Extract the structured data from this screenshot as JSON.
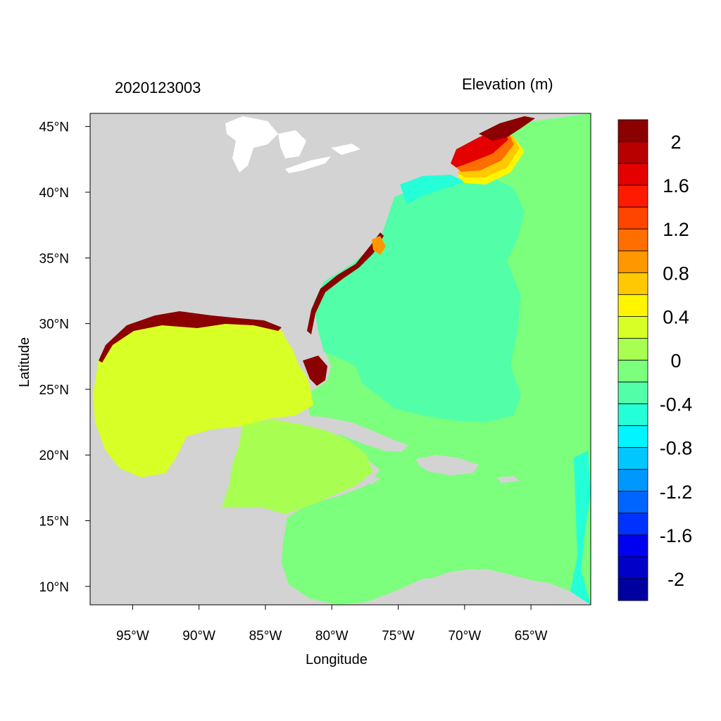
{
  "map": {
    "left_title": "2020123003",
    "right_title": "Elevation (m)",
    "xlabel": "Longitude",
    "ylabel": "Latitude",
    "lon_range": [
      -98.2,
      -60.5
    ],
    "lat_range": [
      8.6,
      46.0
    ],
    "lon_ticks": [
      {
        "value": -95,
        "label": "95°W"
      },
      {
        "value": -90,
        "label": "90°W"
      },
      {
        "value": -85,
        "label": "85°W"
      },
      {
        "value": -80,
        "label": "80°W"
      },
      {
        "value": -75,
        "label": "75°W"
      },
      {
        "value": -70,
        "label": "70°W"
      },
      {
        "value": -65,
        "label": "65°W"
      }
    ],
    "lat_ticks": [
      {
        "value": 45,
        "label": "45°N"
      },
      {
        "value": 40,
        "label": "40°N"
      },
      {
        "value": 35,
        "label": "35°N"
      },
      {
        "value": 30,
        "label": "30°N"
      },
      {
        "value": 25,
        "label": "25°N"
      },
      {
        "value": 20,
        "label": "20°N"
      },
      {
        "value": 15,
        "label": "15°N"
      },
      {
        "value": 10,
        "label": "10°N"
      }
    ],
    "land_color": "#d3d3d3",
    "regions": [
      {
        "name": "Gulf of Mexico",
        "level": "0.2 to 0.4",
        "color": "#d8ff26"
      },
      {
        "name": "Caribbean western basin",
        "level": "0 to 0.2",
        "color": "#a8ff52"
      },
      {
        "name": "Caribbean / open Atlantic",
        "level": "-0.2 to 0",
        "color": "#7cff7c"
      },
      {
        "name": "Western North Atlantic",
        "level": "-0.4 to -0.2",
        "color": "#52ffa8"
      },
      {
        "name": "Mid-Atlantic shelf",
        "level": "-0.6 to -0.4",
        "color": "#24ffd8"
      },
      {
        "name": "Gulf of Maine",
        "level": "1.4 to 2.2",
        "color": "#e80000"
      },
      {
        "name": "South Florida coast",
        "level": "above 2",
        "color": "#8b0000"
      }
    ]
  },
  "colorbar": {
    "colors": [
      "#8b0000",
      "#b80000",
      "#e50000",
      "#ff1a00",
      "#ff4500",
      "#ff6e00",
      "#ff9800",
      "#ffc800",
      "#fff500",
      "#d8ff26",
      "#a8ff52",
      "#7cff7c",
      "#52ffa8",
      "#24ffd8",
      "#00f5ff",
      "#00c8ff",
      "#0098ff",
      "#0064ff",
      "#0032ff",
      "#0000f0",
      "#0000c8",
      "#0000a0"
    ],
    "labels": [
      "2",
      "1.6",
      "1.2",
      "0.8",
      "0.4",
      "0",
      "-0.4",
      "-0.8",
      "-1.2",
      "-1.6",
      "-2"
    ]
  }
}
